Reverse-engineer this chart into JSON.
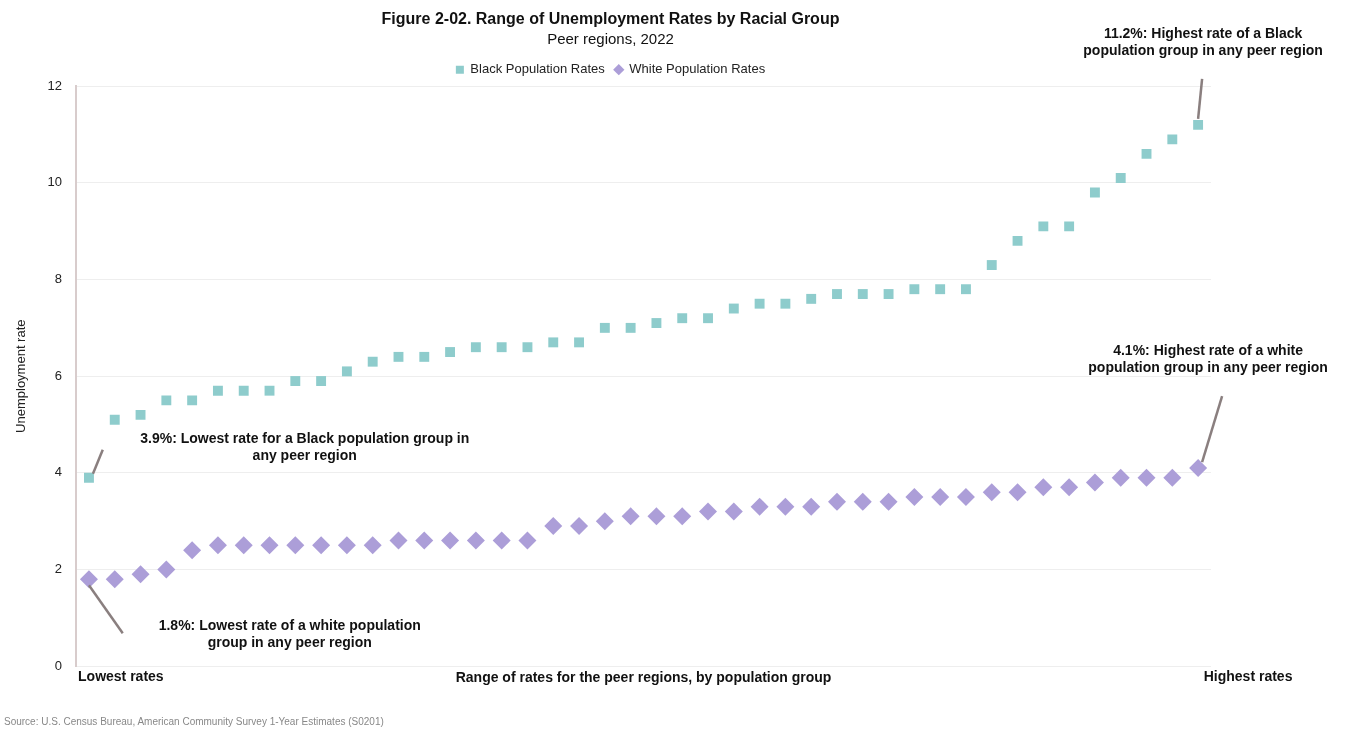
{
  "chart_data": {
    "type": "scatter",
    "title": "Figure 2-02. Range of Unemployment Rates by Racial Group",
    "subtitle": "Peer regions, 2022",
    "xlabel": "Range of rates for the peer regions, by population group",
    "ylabel": "Unemployment rate",
    "categories": [
      null,
      null,
      null,
      null,
      null,
      null,
      null,
      null,
      null,
      null,
      null,
      null,
      null,
      null,
      null,
      null,
      null,
      null,
      null,
      null,
      null,
      null,
      null,
      null,
      null,
      null,
      null,
      null,
      null,
      null,
      null,
      null,
      null,
      null,
      null,
      null,
      null,
      null,
      null,
      null,
      null,
      null,
      null,
      null
    ],
    "series": [
      {
        "name": "Black Population Rates",
        "color": "#8ecccc",
        "marker": "square",
        "values": [
          3.9,
          5.1,
          5.2,
          5.5,
          5.5,
          5.7,
          5.7,
          5.7,
          5.9,
          5.9,
          6.1,
          6.3,
          6.4,
          6.4,
          6.5,
          6.6,
          6.6,
          6.6,
          6.7,
          6.7,
          7.0,
          7.0,
          7.1,
          7.2,
          7.2,
          7.4,
          7.5,
          7.5,
          7.6,
          7.7,
          7.7,
          7.7,
          7.8,
          7.8,
          7.8,
          8.3,
          8.8,
          9.1,
          9.1,
          9.8,
          10.1,
          10.6,
          10.9,
          11.2
        ]
      },
      {
        "name": "White Population Rates",
        "color": "#ac9ed8",
        "marker": "diamond",
        "values": [
          1.8,
          1.8,
          1.9,
          2.0,
          2.4,
          2.5,
          2.5,
          2.5,
          2.5,
          2.5,
          2.5,
          2.5,
          2.6,
          2.6,
          2.6,
          2.6,
          2.6,
          2.6,
          2.9,
          2.9,
          3.0,
          3.1,
          3.1,
          3.1,
          3.2,
          3.2,
          3.3,
          3.3,
          3.3,
          3.4,
          3.4,
          3.4,
          3.5,
          3.5,
          3.5,
          3.6,
          3.6,
          3.7,
          3.7,
          3.8,
          3.9,
          3.9,
          3.9,
          4.1
        ]
      }
    ],
    "ylim": [
      0,
      12
    ],
    "yticks": [
      0,
      2,
      4,
      6,
      8,
      10,
      12
    ],
    "grid": "y",
    "legend": "top",
    "tick_labels": "y",
    "annotations": [
      "11.2%: Highest rate of a Black population group in any peer region",
      "3.9%: Lowest rate for a Black population group in any peer region",
      "4.1%: Highest rate of a white population group in any peer region",
      "1.8%: Lowest rate of a white population group in any peer region",
      "Lowest rates",
      "Highest rates",
      "Source: U.S. Census Bureau, American Community Survey 1-Year Estimates (S0201)"
    ]
  }
}
